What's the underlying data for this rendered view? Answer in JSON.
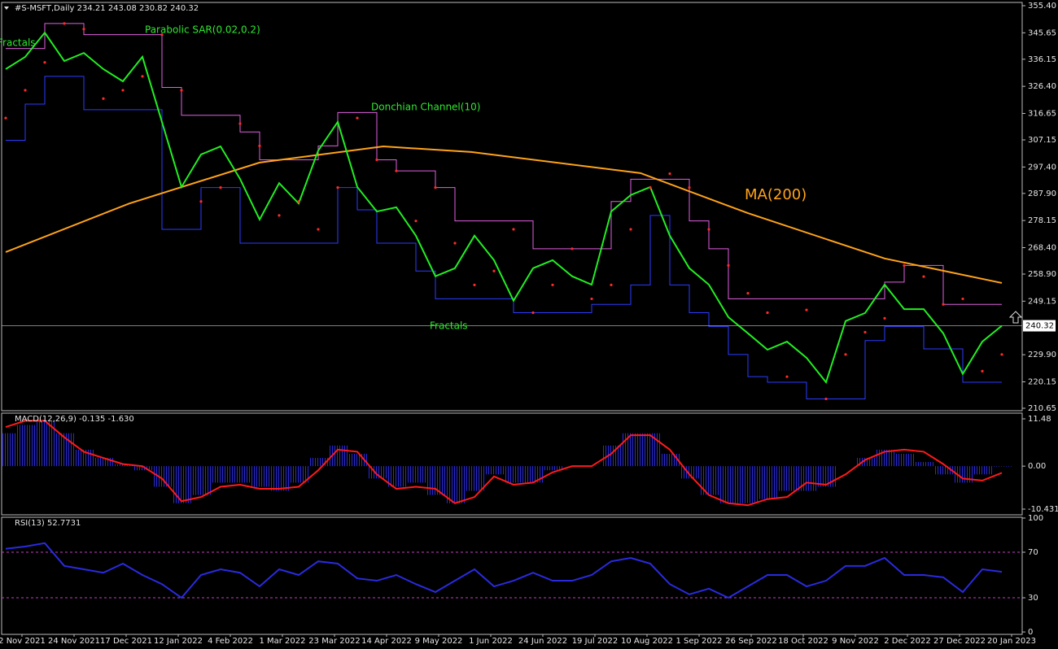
{
  "chart_data": [
    {
      "type": "line",
      "title": "#S-MSFT,Daily  234.21 243.08 230.82 240.32",
      "last_price": 240.32,
      "annotations": [
        "Fractals",
        "Parabolic SAR(0.02,0.2)",
        "Donchian Channel(10)",
        "MA(200)",
        "Fractals"
      ],
      "xlim": [
        -6.25,
        307.25
      ],
      "ylim": [
        209.77,
        356.57
      ],
      "yticks": [
        {
          "value": 355.4,
          "label": "355.40"
        },
        {
          "value": 345.65,
          "label": "345.65"
        },
        {
          "value": 336.15,
          "label": "336.15"
        },
        {
          "value": 326.4,
          "label": "326.40"
        },
        {
          "value": 316.65,
          "label": "316.65"
        },
        {
          "value": 307.15,
          "label": "307.15"
        },
        {
          "value": 297.4,
          "label": "297.40"
        },
        {
          "value": 287.9,
          "label": "287.90"
        },
        {
          "value": 278.15,
          "label": "278.15"
        },
        {
          "value": 268.4,
          "label": "268.40"
        },
        {
          "value": 258.9,
          "label": "258.90"
        },
        {
          "value": 249.15,
          "label": "249.15"
        },
        {
          "value": 229.9,
          "label": "229.90"
        },
        {
          "value": 220.15,
          "label": "220.15"
        },
        {
          "value": 210.65,
          "label": "210.65"
        }
      ],
      "x": [
        -5,
        1,
        7,
        13,
        19,
        25,
        31,
        37,
        43,
        49,
        55,
        61,
        67,
        73,
        79,
        85,
        91,
        97,
        103,
        109,
        115,
        121,
        127,
        133,
        139,
        145,
        151,
        157,
        163,
        169,
        175,
        181,
        187,
        193,
        199,
        205,
        211,
        217,
        223,
        229,
        235,
        241,
        247,
        253,
        259,
        265,
        271,
        277,
        283,
        289,
        295,
        301
      ],
      "series": [
        {
          "name": "Donchian upper",
          "style": "steps",
          "color": "#e060e0",
          "values": [
            340,
            340,
            349,
            349,
            345,
            345,
            345,
            345,
            326,
            316,
            316,
            316,
            310,
            300,
            300,
            300,
            305,
            317,
            317,
            300,
            296,
            296,
            290,
            278,
            278,
            278,
            278,
            268,
            268,
            268,
            268,
            285,
            293,
            293,
            293,
            278,
            268,
            250,
            250,
            250,
            250,
            250,
            250,
            250,
            250,
            256,
            262,
            262,
            248,
            248,
            248,
            248
          ]
        },
        {
          "name": "Donchian lower",
          "style": "steps",
          "color": "#2b3cff",
          "values": [
            307,
            320,
            330,
            330,
            318,
            318,
            318,
            318,
            275,
            275,
            290,
            290,
            270,
            270,
            270,
            270,
            270,
            290,
            282,
            270,
            270,
            260,
            250,
            250,
            250,
            250,
            245,
            245,
            245,
            245,
            248,
            248,
            255,
            280,
            255,
            245,
            240,
            230,
            222,
            220,
            220,
            214,
            214,
            214,
            235,
            240,
            240,
            232,
            232,
            220,
            220,
            220
          ]
        },
        {
          "name": "MA(200)",
          "style": "line",
          "color": "#ffa31a",
          "x": [
            -5,
            33,
            73,
            111,
            138,
            190,
            223,
            265,
            301
          ],
          "values": [
            266.8,
            284.3,
            299,
            304.8,
            302.8,
            295.2,
            280.8,
            264.5,
            255.7
          ]
        },
        {
          "name": "Close",
          "style": "line",
          "color": "#22ee22",
          "values": [
            332.6,
            337,
            345.7,
            335.5,
            338.4,
            332.6,
            328.2,
            337,
            313.6,
            290.2,
            301.9,
            304.8,
            293.1,
            278.5,
            291.6,
            284.3,
            303.3,
            313.6,
            290.2,
            281.4,
            282.9,
            272.7,
            258.1,
            261,
            272.7,
            263.9,
            249.3,
            261,
            263.9,
            258.1,
            255.1,
            281.4,
            287.3,
            290.2,
            272.7,
            261,
            255.1,
            243.4,
            237.6,
            231.7,
            234.6,
            228.8,
            220,
            242,
            244.9,
            255.1,
            246.3,
            246.3,
            237.6,
            223,
            234.6,
            240.32
          ]
        },
        {
          "name": "Parabolic SAR",
          "style": "dots",
          "color": "#ff2a2a",
          "values": [
            315,
            325,
            335,
            349,
            347,
            322,
            325,
            330,
            345,
            325,
            285,
            290,
            313,
            305,
            280,
            285,
            275,
            290,
            315,
            300,
            296,
            278,
            290,
            270,
            255,
            260,
            275,
            245,
            255,
            268,
            250,
            255,
            275,
            290,
            295,
            290,
            275,
            262,
            252,
            245,
            222,
            246,
            214,
            230,
            238,
            243,
            262,
            258,
            248,
            250,
            224,
            230
          ]
        }
      ]
    },
    {
      "type": "combo",
      "title": "MACD(12,26,9) -0.135 -1.630",
      "xlim": [
        -6.25,
        307.25
      ],
      "ylim": [
        -11.81,
        12.86
      ],
      "yticks": [
        11.48,
        {
          "value": 0,
          "label": "0.00"
        },
        -10.431
      ],
      "x": [
        -5,
        1,
        7,
        13,
        19,
        25,
        31,
        37,
        43,
        49,
        55,
        61,
        67,
        73,
        79,
        85,
        91,
        97,
        103,
        109,
        115,
        121,
        127,
        133,
        139,
        145,
        151,
        157,
        163,
        169,
        175,
        181,
        187,
        193,
        199,
        205,
        211,
        217,
        223,
        229,
        235,
        241,
        247,
        253,
        259,
        265,
        271,
        277,
        283,
        289,
        295,
        301
      ],
      "series": [
        {
          "name": "MACD",
          "style": "histogram",
          "color": "#2a2ae0",
          "values": [
            8,
            10,
            11,
            8,
            4,
            2,
            0.5,
            -1,
            -5,
            -9,
            -7,
            -4,
            -4,
            -5,
            -6,
            -4,
            2,
            5,
            3,
            -3,
            -5,
            -4,
            -7,
            -9,
            -6,
            -2,
            -4,
            -4,
            -1,
            0,
            0,
            5,
            8,
            8,
            3,
            -3,
            -7,
            -9,
            -9,
            -8,
            -6,
            -6,
            -5,
            0,
            2,
            4,
            3,
            1,
            -2,
            -4,
            -2,
            -0.135
          ]
        },
        {
          "name": "Signal",
          "style": "line",
          "color": "#ff1a1a",
          "values": [
            9.5,
            11,
            11,
            7,
            3.5,
            2,
            0.5,
            0,
            -3,
            -8.5,
            -7.5,
            -5,
            -4.5,
            -5.5,
            -5.5,
            -5,
            -1,
            4,
            3.5,
            -2,
            -5.5,
            -5,
            -5.5,
            -9,
            -7.5,
            -2.5,
            -4.5,
            -4,
            -1.5,
            0,
            0,
            3,
            7.5,
            7.5,
            4,
            -2,
            -7,
            -9,
            -9.5,
            -8,
            -7.5,
            -4,
            -4.5,
            -2,
            1.5,
            3.5,
            4,
            3.5,
            0.5,
            -3,
            -3.5,
            -1.63
          ]
        }
      ]
    },
    {
      "type": "line",
      "title": "RSI(13) 52.7731",
      "xlim": [
        -6.25,
        307.25
      ],
      "ylim": [
        -2.1,
        100.7
      ],
      "yticks": [
        100,
        70,
        30,
        0
      ],
      "levels": [
        70,
        30
      ],
      "xticks": [
        {
          "value": 0,
          "label": "2 Nov 2021"
        },
        {
          "value": 16,
          "label": "24 Nov 2021"
        },
        {
          "value": 32,
          "label": "17 Dec 2021"
        },
        {
          "value": 48,
          "label": "12 Jan 2022"
        },
        {
          "value": 64,
          "label": "4 Feb 2022"
        },
        {
          "value": 80,
          "label": "1 Mar 2022"
        },
        {
          "value": 96,
          "label": "23 Mar 2022"
        },
        {
          "value": 112,
          "label": "14 Apr 2022"
        },
        {
          "value": 128,
          "label": "9 May 2022"
        },
        {
          "value": 144,
          "label": "1 Jun 2022"
        },
        {
          "value": 160,
          "label": "24 Jun 2022"
        },
        {
          "value": 176,
          "label": "19 Jul 2022"
        },
        {
          "value": 192,
          "label": "10 Aug 2022"
        },
        {
          "value": 208,
          "label": "1 Sep 2022"
        },
        {
          "value": 224,
          "label": "26 Sep 2022"
        },
        {
          "value": 240,
          "label": "18 Oct 2022"
        },
        {
          "value": 256,
          "label": "9 Nov 2022"
        },
        {
          "value": 272,
          "label": "2 Dec 2022"
        },
        {
          "value": 288,
          "label": "27 Dec 2022"
        },
        {
          "value": 304,
          "label": "20 Jan 2023"
        }
      ],
      "x": [
        -5,
        1,
        7,
        13,
        19,
        25,
        31,
        37,
        43,
        49,
        55,
        61,
        67,
        73,
        79,
        85,
        91,
        97,
        103,
        109,
        115,
        121,
        127,
        133,
        139,
        145,
        151,
        157,
        163,
        169,
        175,
        181,
        187,
        193,
        199,
        205,
        211,
        217,
        223,
        229,
        235,
        241,
        247,
        253,
        259,
        265,
        271,
        277,
        283,
        289,
        295,
        301
      ],
      "series": [
        {
          "name": "RSI",
          "style": "line",
          "color": "#2a2ae0",
          "values": [
            73,
            75,
            78,
            58,
            55,
            52,
            60,
            50,
            42,
            30,
            50,
            55,
            52,
            40,
            55,
            50,
            62,
            60,
            47,
            45,
            50,
            42,
            35,
            45,
            55,
            40,
            45,
            52,
            45,
            45,
            50,
            62,
            65,
            60,
            42,
            33,
            38,
            30,
            40,
            50,
            50,
            40,
            45,
            58,
            58,
            65,
            50,
            50,
            48,
            35,
            55,
            52.77
          ]
        }
      ]
    }
  ]
}
